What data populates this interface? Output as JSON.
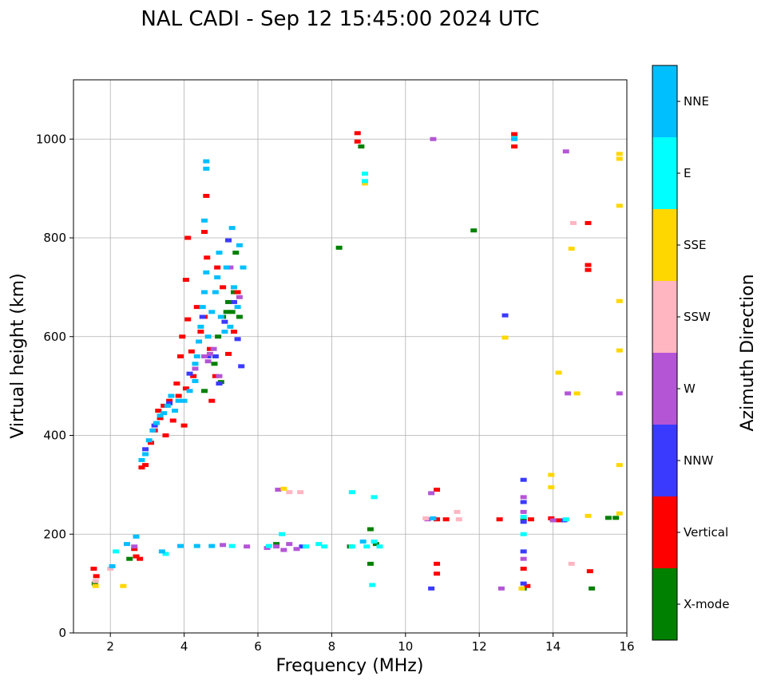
{
  "chart_data": {
    "type": "scatter",
    "title": "NAL CADI - Sep 12 15:45:00 2024 UTC",
    "xlabel": "Frequency (MHz)",
    "ylabel": "Virtual height (km)",
    "xlim": [
      1,
      16
    ],
    "ylim": [
      0,
      1120
    ],
    "xticks": [
      2,
      4,
      6,
      8,
      10,
      12,
      14,
      16
    ],
    "yticks": [
      0,
      200,
      400,
      600,
      800,
      1000
    ],
    "grid": true,
    "colorbar": {
      "title": "Azimuth Direction",
      "categories": [
        {
          "label": "X-mode",
          "color": "#008000"
        },
        {
          "label": "Vertical",
          "color": "#ff0000"
        },
        {
          "label": "NNW",
          "color": "#3a3aff"
        },
        {
          "label": "W",
          "color": "#b455d6"
        },
        {
          "label": "SSW",
          "color": "#ffb6c1"
        },
        {
          "label": "SSE",
          "color": "#ffd700"
        },
        {
          "label": "E",
          "color": "#00ffff"
        },
        {
          "label": "NNE",
          "color": "#00bfff"
        }
      ]
    },
    "series": [
      {
        "name": "X-mode",
        "points": [
          [
            1.58,
            100
          ],
          [
            2.52,
            150
          ],
          [
            4.55,
            490
          ],
          [
            4.82,
            545
          ],
          [
            4.92,
            600
          ],
          [
            5.0,
            508
          ],
          [
            5.05,
            640
          ],
          [
            5.15,
            650
          ],
          [
            5.2,
            670
          ],
          [
            5.3,
            650
          ],
          [
            5.35,
            690
          ],
          [
            5.4,
            770
          ],
          [
            5.5,
            640
          ],
          [
            6.5,
            180
          ],
          [
            8.2,
            780
          ],
          [
            8.5,
            175
          ],
          [
            8.8,
            985
          ],
          [
            9.05,
            210
          ],
          [
            9.05,
            140
          ],
          [
            9.2,
            180
          ],
          [
            11.85,
            815
          ],
          [
            13.2,
            230
          ],
          [
            13.2,
            90
          ],
          [
            15.05,
            90
          ],
          [
            15.5,
            233
          ],
          [
            15.7,
            233
          ]
        ]
      },
      {
        "name": "Vertical",
        "points": [
          [
            1.55,
            130
          ],
          [
            1.62,
            115
          ],
          [
            2.65,
            170
          ],
          [
            2.7,
            155
          ],
          [
            2.8,
            150
          ],
          [
            2.85,
            335
          ],
          [
            2.95,
            340
          ],
          [
            3.1,
            385
          ],
          [
            3.2,
            410
          ],
          [
            3.3,
            450
          ],
          [
            3.35,
            435
          ],
          [
            3.45,
            460
          ],
          [
            3.5,
            400
          ],
          [
            3.6,
            470
          ],
          [
            3.7,
            430
          ],
          [
            3.8,
            505
          ],
          [
            3.85,
            480
          ],
          [
            3.9,
            560
          ],
          [
            3.95,
            600
          ],
          [
            4.0,
            420
          ],
          [
            4.05,
            495
          ],
          [
            4.1,
            635
          ],
          [
            4.05,
            715
          ],
          [
            4.1,
            800
          ],
          [
            4.2,
            570
          ],
          [
            4.25,
            520
          ],
          [
            4.35,
            660
          ],
          [
            4.45,
            610
          ],
          [
            4.55,
            640
          ],
          [
            4.6,
            885
          ],
          [
            4.55,
            812
          ],
          [
            4.62,
            760
          ],
          [
            4.7,
            575
          ],
          [
            4.75,
            470
          ],
          [
            4.85,
            520
          ],
          [
            4.9,
            740
          ],
          [
            5.05,
            700
          ],
          [
            5.2,
            565
          ],
          [
            5.35,
            610
          ],
          [
            5.45,
            690
          ],
          [
            8.7,
            1012
          ],
          [
            8.7,
            995
          ],
          [
            10.85,
            290
          ],
          [
            10.85,
            230
          ],
          [
            10.85,
            140
          ],
          [
            10.85,
            120
          ],
          [
            11.1,
            230
          ],
          [
            12.55,
            230
          ],
          [
            12.95,
            1010
          ],
          [
            12.95,
            985
          ],
          [
            13.2,
            130
          ],
          [
            13.3,
            95
          ],
          [
            13.4,
            230
          ],
          [
            13.95,
            232
          ],
          [
            14.15,
            228
          ],
          [
            14.95,
            830
          ],
          [
            14.95,
            745
          ],
          [
            14.95,
            735
          ],
          [
            15.0,
            125
          ]
        ]
      },
      {
        "name": "NNW",
        "points": [
          [
            2.95,
            372
          ],
          [
            3.2,
            420
          ],
          [
            3.6,
            465
          ],
          [
            4.15,
            525
          ],
          [
            4.5,
            640
          ],
          [
            4.65,
            560
          ],
          [
            4.85,
            560
          ],
          [
            4.95,
            505
          ],
          [
            5.1,
            630
          ],
          [
            5.2,
            795
          ],
          [
            5.35,
            670
          ],
          [
            5.45,
            595
          ],
          [
            5.55,
            540
          ],
          [
            7.2,
            175
          ],
          [
            10.7,
            90
          ],
          [
            12.7,
            643
          ],
          [
            13.2,
            310
          ],
          [
            13.2,
            265
          ],
          [
            13.2,
            225
          ],
          [
            13.2,
            165
          ],
          [
            13.2,
            100
          ],
          [
            14.3,
            228
          ]
        ]
      },
      {
        "name": "W",
        "points": [
          [
            2.65,
            175
          ],
          [
            4.3,
            535
          ],
          [
            4.55,
            560
          ],
          [
            4.65,
            550
          ],
          [
            4.7,
            565
          ],
          [
            4.8,
            575
          ],
          [
            4.95,
            520
          ],
          [
            5.25,
            740
          ],
          [
            5.5,
            680
          ],
          [
            5.05,
            178
          ],
          [
            5.7,
            175
          ],
          [
            6.25,
            172
          ],
          [
            6.5,
            175
          ],
          [
            6.55,
            290
          ],
          [
            6.7,
            168
          ],
          [
            6.85,
            180
          ],
          [
            7.05,
            170
          ],
          [
            10.7,
            283
          ],
          [
            10.75,
            1000
          ],
          [
            10.6,
            230
          ],
          [
            12.6,
            90
          ],
          [
            13.2,
            275
          ],
          [
            13.2,
            245
          ],
          [
            13.2,
            150
          ],
          [
            14.0,
            228
          ],
          [
            14.35,
            975
          ],
          [
            14.4,
            485
          ],
          [
            15.8,
            485
          ]
        ]
      },
      {
        "name": "SSW",
        "points": [
          [
            1.6,
            105
          ],
          [
            2.0,
            130
          ],
          [
            6.85,
            285
          ],
          [
            7.15,
            285
          ],
          [
            10.55,
            232
          ],
          [
            11.4,
            245
          ],
          [
            11.45,
            230
          ],
          [
            14.55,
            830
          ],
          [
            14.5,
            140
          ]
        ]
      },
      {
        "name": "SSE",
        "points": [
          [
            1.6,
            95
          ],
          [
            2.35,
            95
          ],
          [
            6.7,
            292
          ],
          [
            8.9,
            910
          ],
          [
            12.7,
            598
          ],
          [
            13.15,
            90
          ],
          [
            13.95,
            320
          ],
          [
            13.95,
            295
          ],
          [
            14.15,
            527
          ],
          [
            14.5,
            778
          ],
          [
            14.65,
            485
          ],
          [
            14.95,
            237
          ],
          [
            15.8,
            970
          ],
          [
            15.8,
            960
          ],
          [
            15.8,
            865
          ],
          [
            15.8,
            672
          ],
          [
            15.8,
            572
          ],
          [
            15.8,
            340
          ],
          [
            15.8,
            242
          ]
        ]
      },
      {
        "name": "E",
        "points": [
          [
            2.15,
            165
          ],
          [
            3.5,
            160
          ],
          [
            5.3,
            176
          ],
          [
            6.3,
            176
          ],
          [
            6.65,
            200
          ],
          [
            7.3,
            175
          ],
          [
            7.65,
            180
          ],
          [
            7.8,
            175
          ],
          [
            8.55,
            285
          ],
          [
            8.55,
            175
          ],
          [
            8.95,
            175
          ],
          [
            8.9,
            930
          ],
          [
            8.9,
            915
          ],
          [
            9.1,
            97
          ],
          [
            9.15,
            275
          ],
          [
            9.15,
            185
          ],
          [
            9.3,
            175
          ],
          [
            13.2,
            200
          ],
          [
            13.2,
            235
          ],
          [
            12.95,
            1002
          ],
          [
            14.35,
            230
          ]
        ]
      },
      {
        "name": "NNE",
        "points": [
          [
            2.05,
            135
          ],
          [
            2.45,
            180
          ],
          [
            2.7,
            195
          ],
          [
            2.85,
            350
          ],
          [
            2.95,
            362
          ],
          [
            3.05,
            390
          ],
          [
            3.15,
            410
          ],
          [
            3.25,
            425
          ],
          [
            3.35,
            440
          ],
          [
            3.45,
            445
          ],
          [
            3.55,
            460
          ],
          [
            3.65,
            480
          ],
          [
            3.75,
            450
          ],
          [
            3.85,
            470
          ],
          [
            4.0,
            470
          ],
          [
            4.15,
            490
          ],
          [
            4.3,
            510
          ],
          [
            4.3,
            545
          ],
          [
            4.35,
            560
          ],
          [
            4.4,
            590
          ],
          [
            4.45,
            620
          ],
          [
            4.5,
            660
          ],
          [
            4.55,
            690
          ],
          [
            4.6,
            730
          ],
          [
            4.6,
            955
          ],
          [
            4.6,
            940
          ],
          [
            4.55,
            835
          ],
          [
            4.65,
            600
          ],
          [
            4.75,
            650
          ],
          [
            4.85,
            690
          ],
          [
            4.9,
            720
          ],
          [
            4.95,
            770
          ],
          [
            5.0,
            640
          ],
          [
            5.1,
            610
          ],
          [
            5.15,
            740
          ],
          [
            5.25,
            620
          ],
          [
            5.3,
            820
          ],
          [
            5.35,
            700
          ],
          [
            5.45,
            660
          ],
          [
            5.5,
            785
          ],
          [
            5.6,
            740
          ],
          [
            3.4,
            165
          ],
          [
            3.9,
            176
          ],
          [
            4.35,
            176
          ],
          [
            4.75,
            176
          ],
          [
            8.85,
            185
          ],
          [
            10.75,
            232
          ],
          [
            12.95,
            1000
          ]
        ]
      }
    ]
  }
}
